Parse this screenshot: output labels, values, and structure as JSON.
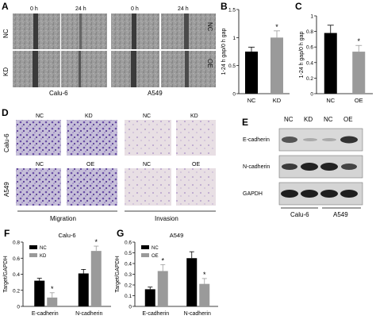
{
  "panels": {
    "A": "A",
    "B": "B",
    "C": "C",
    "D": "D",
    "E": "E",
    "F": "F",
    "G": "G"
  },
  "panel_a": {
    "time_labels": [
      "0 h",
      "24 h",
      "0 h",
      "24 h"
    ],
    "row_labels_left": [
      "NC",
      "KD"
    ],
    "row_labels_right": [
      "NC",
      "OE"
    ],
    "cell_lines": [
      "Calu-6",
      "A549"
    ]
  },
  "panel_d": {
    "col_labels_top": [
      "NC",
      "KD",
      "NC",
      "KD"
    ],
    "col_labels_bottom": [
      "NC",
      "OE",
      "NC",
      "OE"
    ],
    "row_labels": [
      "Calu-6",
      "A549"
    ],
    "groups": [
      "Migration",
      "Invasion"
    ]
  },
  "panel_e": {
    "lane_labels": [
      "NC",
      "KD",
      "NC",
      "OE"
    ],
    "proteins": [
      "E-cadherin",
      "N-cadherin",
      "GAPDH"
    ],
    "cell_lines": [
      "Calu-6",
      "A549"
    ]
  },
  "chart_data": [
    {
      "id": "B",
      "type": "bar",
      "categories": [
        "NC",
        "KD"
      ],
      "values": [
        0.75,
        1.0
      ],
      "errors": [
        0.08,
        0.12
      ],
      "significance": [
        "",
        "*"
      ],
      "ylabel": "1-24 h gap/0  h gap",
      "ylim": [
        0,
        1.5
      ],
      "yticks": [
        "0",
        "0.5",
        "1",
        "1.5"
      ],
      "colors": [
        "#000000",
        "#9a9a9a"
      ]
    },
    {
      "id": "C",
      "type": "bar",
      "categories": [
        "NC",
        "OE"
      ],
      "values": [
        0.78,
        0.54
      ],
      "errors": [
        0.1,
        0.08
      ],
      "significance": [
        "",
        "*"
      ],
      "ylabel": "1-24 h gap/0  h gap",
      "ylim": [
        0,
        1.0
      ],
      "yticks": [
        "0",
        "0.2",
        "0.4",
        "0.6",
        "0.8",
        "1"
      ],
      "colors": [
        "#000000",
        "#9a9a9a"
      ]
    },
    {
      "id": "F",
      "type": "bar",
      "title": "Calu-6",
      "categories": [
        "E-cadherin",
        "N-cadherin"
      ],
      "series": [
        {
          "name": "NC",
          "values": [
            0.32,
            0.41
          ],
          "errors": [
            0.03,
            0.05
          ],
          "significance": [
            "",
            ""
          ],
          "color": "#000000"
        },
        {
          "name": "KD",
          "values": [
            0.11,
            0.69
          ],
          "errors": [
            0.06,
            0.06
          ],
          "significance": [
            "*",
            "*"
          ],
          "color": "#9a9a9a"
        }
      ],
      "ylabel": "Target/GAPDH",
      "ylim": [
        0,
        0.8
      ],
      "yticks": [
        "0",
        "0.2",
        "0.4",
        "0.6",
        "0.8"
      ],
      "legend": "top-left"
    },
    {
      "id": "G",
      "type": "bar",
      "title": "A549",
      "categories": [
        "E-cadherin",
        "N-cadherin"
      ],
      "series": [
        {
          "name": "NC",
          "values": [
            0.16,
            0.45
          ],
          "errors": [
            0.02,
            0.06
          ],
          "significance": [
            "",
            ""
          ],
          "color": "#000000"
        },
        {
          "name": "OE",
          "values": [
            0.33,
            0.21
          ],
          "errors": [
            0.06,
            0.05
          ],
          "significance": [
            "*",
            "*"
          ],
          "color": "#9a9a9a"
        }
      ],
      "ylabel": "Target/GAPDH",
      "ylim": [
        0,
        0.6
      ],
      "yticks": [
        "0",
        "0.1",
        "0.2",
        "0.3",
        "0.4",
        "0.5",
        "0.6"
      ],
      "legend": "top-left"
    }
  ]
}
